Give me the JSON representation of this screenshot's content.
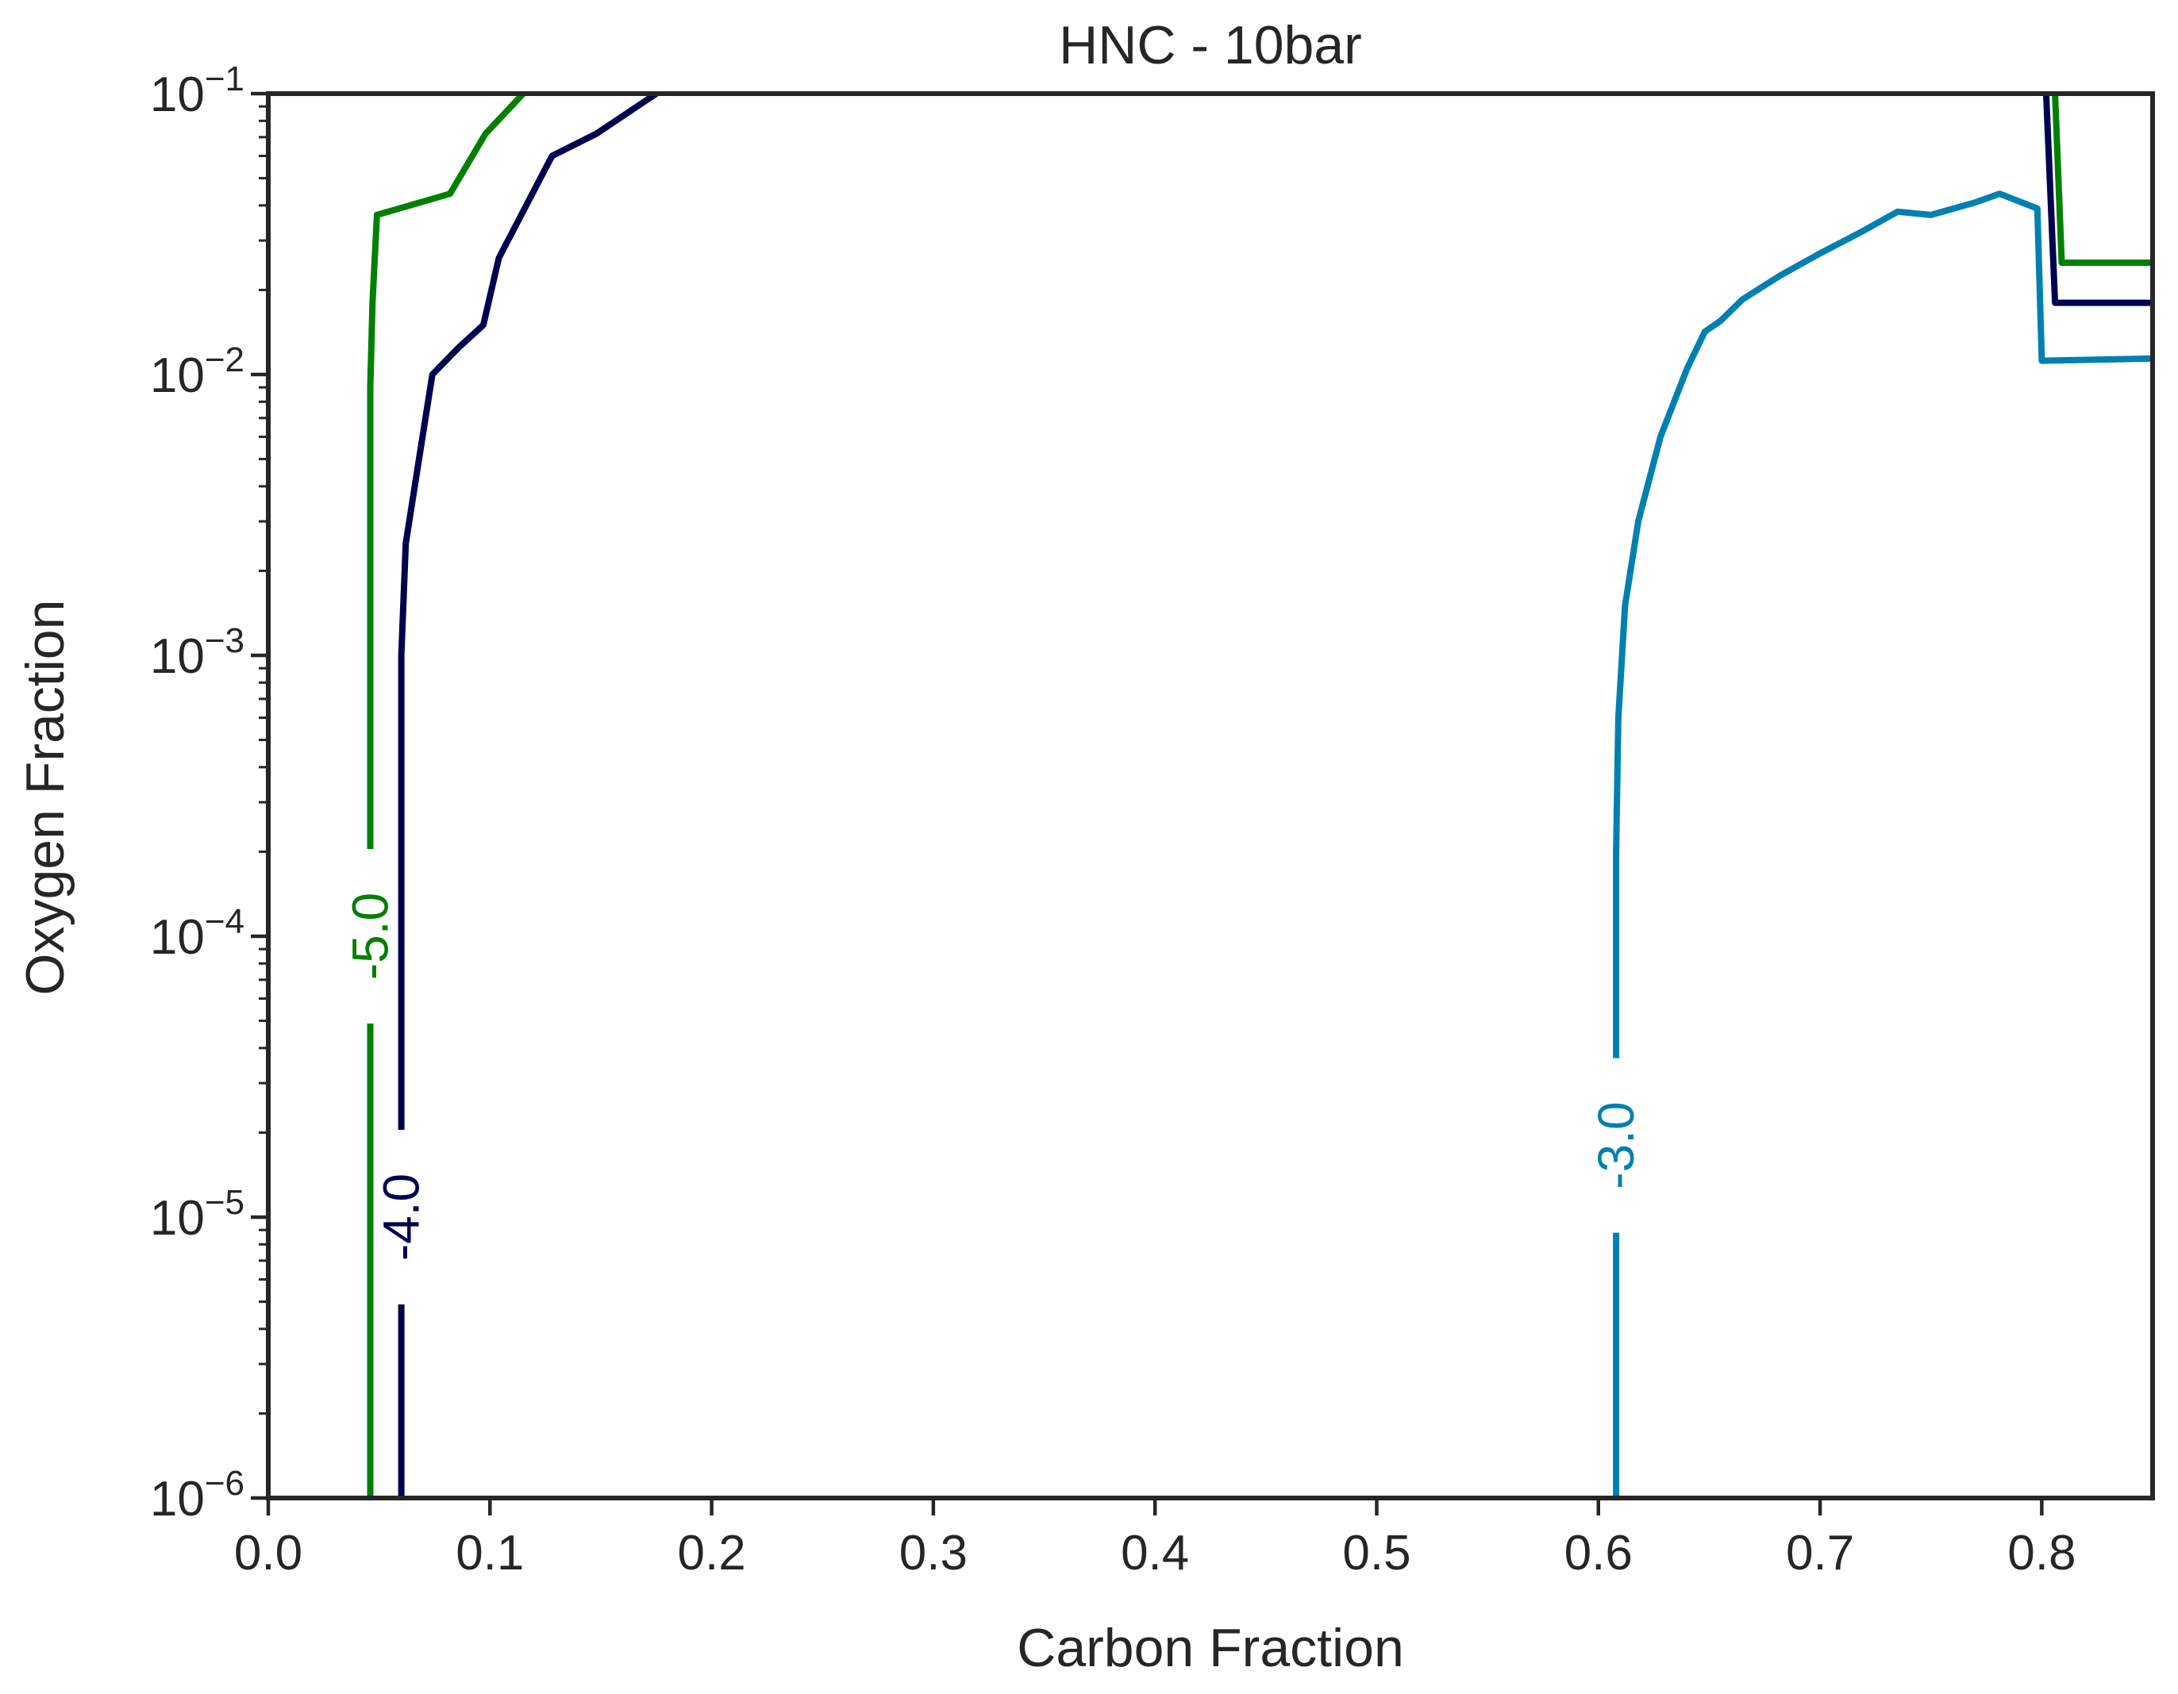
{
  "chart_data": {
    "type": "line",
    "title": "HNC - 10bar",
    "xlabel": "Carbon Fraction",
    "ylabel": "Oxygen Fraction",
    "xlim": [
      0.0,
      0.85
    ],
    "ylim": [
      1e-06,
      0.1
    ],
    "yscale": "log",
    "grid": false,
    "x_ticks": [
      "0.0",
      "0.1",
      "0.2",
      "0.3",
      "0.4",
      "0.5",
      "0.6",
      "0.7",
      "0.8"
    ],
    "y_ticks": [
      {
        "base": "10",
        "exp": "−6"
      },
      {
        "base": "10",
        "exp": "−5"
      },
      {
        "base": "10",
        "exp": "−4"
      },
      {
        "base": "10",
        "exp": "−3"
      },
      {
        "base": "10",
        "exp": "−2"
      },
      {
        "base": "10",
        "exp": "−1"
      }
    ],
    "series": [
      {
        "name": "-5.0",
        "color": "#008000",
        "label_at": [
          0.046,
          0.0001
        ],
        "segments": [
          [
            [
              0.046,
              1e-06
            ],
            [
              0.046,
              0.00022
            ],
            [
              0.046,
              0.009
            ],
            [
              0.047,
              0.018
            ],
            [
              0.049,
              0.037
            ],
            [
              0.082,
              0.044
            ],
            [
              0.098,
              0.072
            ],
            [
              0.115,
              0.1
            ]
          ],
          [
            [
              0.806,
              0.1
            ],
            [
              0.809,
              0.025
            ],
            [
              0.85,
              0.025
            ]
          ]
        ]
      },
      {
        "name": "-4.0",
        "color": "#000050",
        "label_at": [
          0.06,
          1e-05
        ],
        "segments": [
          [
            [
              0.06,
              1e-06
            ],
            [
              0.06,
              0.001
            ],
            [
              0.062,
              0.0025
            ],
            [
              0.068,
              0.005
            ],
            [
              0.074,
              0.01
            ],
            [
              0.086,
              0.0125
            ],
            [
              0.097,
              0.015
            ],
            [
              0.104,
              0.026
            ],
            [
              0.128,
              0.06
            ],
            [
              0.148,
              0.072
            ],
            [
              0.175,
              0.1
            ]
          ],
          [
            [
              0.802,
              0.1
            ],
            [
              0.806,
              0.018
            ],
            [
              0.85,
              0.018
            ]
          ]
        ]
      },
      {
        "name": "-3.0",
        "color": "#0080b0",
        "label_at": [
          0.608,
          1.8e-05
        ],
        "segments": [
          [
            [
              0.608,
              1e-06
            ],
            [
              0.608,
              0.0002
            ],
            [
              0.609,
              0.0006
            ],
            [
              0.612,
              0.0015
            ],
            [
              0.618,
              0.003
            ],
            [
              0.628,
              0.006
            ],
            [
              0.64,
              0.0105
            ],
            [
              0.648,
              0.0142
            ],
            [
              0.655,
              0.0155
            ],
            [
              0.665,
              0.0185
            ],
            [
              0.682,
              0.0225
            ],
            [
              0.7,
              0.027
            ],
            [
              0.718,
              0.032
            ],
            [
              0.735,
              0.038
            ],
            [
              0.75,
              0.037
            ],
            [
              0.77,
              0.041
            ],
            [
              0.781,
              0.044
            ],
            [
              0.798,
              0.039
            ],
            [
              0.8,
              0.0112
            ],
            [
              0.85,
              0.0114
            ]
          ]
        ]
      }
    ]
  }
}
